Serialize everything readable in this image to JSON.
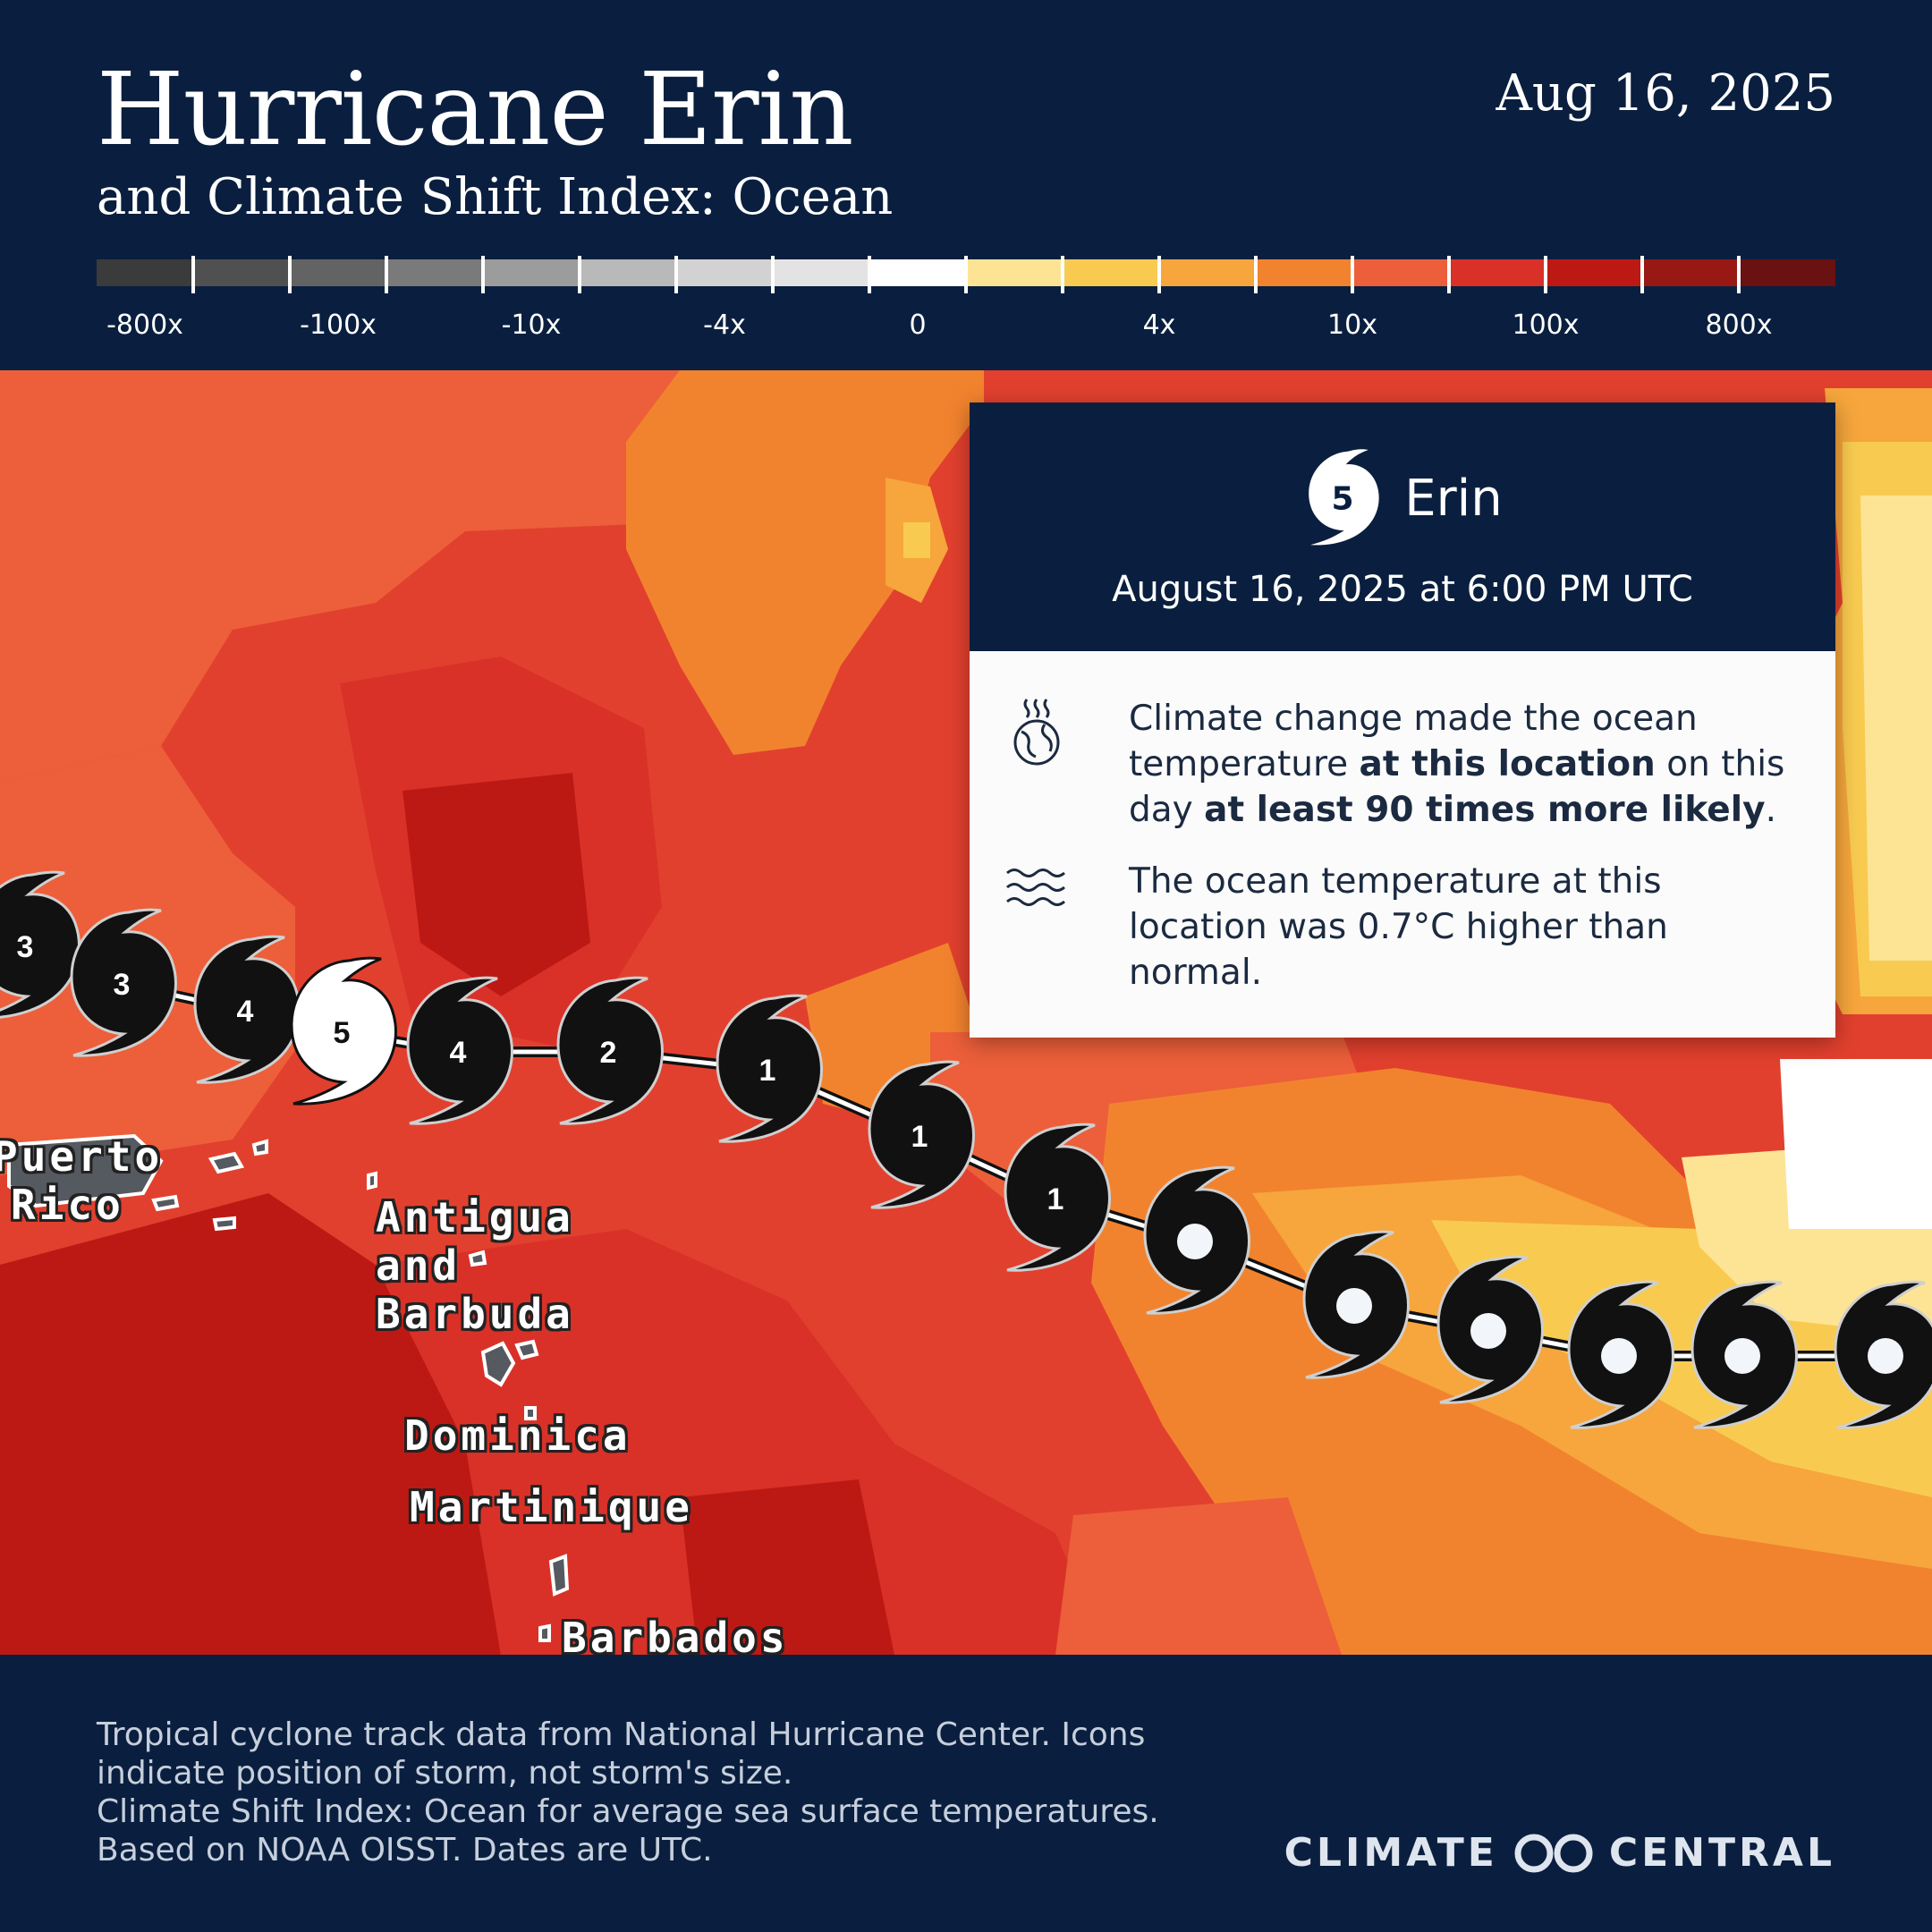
{
  "header": {
    "title": "Hurricane Erin",
    "subtitle": "and Climate Shift Index: Ocean",
    "date": "Aug 16, 2025"
  },
  "legend": {
    "colors": [
      "#3b3b3b",
      "#505050",
      "#636363",
      "#7a7a7a",
      "#9c9c9c",
      "#b9b9b9",
      "#d2d2d2",
      "#e3e3e3",
      "#ffffff",
      "#fde495",
      "#f8cb50",
      "#f6a63c",
      "#f2832e",
      "#ec5f3a",
      "#d93128",
      "#bd1914",
      "#981914",
      "#6a1111"
    ],
    "labels": [
      "-800x",
      "-100x",
      "-10x",
      "-4x",
      "0",
      "4x",
      "10x",
      "100x",
      "800x"
    ]
  },
  "map": {
    "places": {
      "puerto_rico": [
        "Puerto",
        "Rico"
      ],
      "antigua_and_barbuda": [
        "Antigua",
        "and",
        "Barbuda"
      ],
      "dominica": "Dominica",
      "martinique": "Martinique",
      "barbados": "Barbados"
    },
    "track_labels": [
      "3",
      "3",
      "4",
      "5",
      "4",
      "2",
      "1",
      "1",
      "1",
      "",
      "",
      "",
      "",
      "",
      ""
    ]
  },
  "info_card": {
    "category": "5",
    "storm_name": "Erin",
    "datetime": "August 16, 2025 at 6:00 PM UTC",
    "fact1": {
      "text_a": "Climate change made the ocean temperature ",
      "bold_a": "at this location",
      "text_b": " on this day ",
      "bold_b": "at least 90 times more likely",
      "text_c": "."
    },
    "fact2": "The ocean temperature at this location was 0.7°C higher than normal."
  },
  "footer": {
    "source_lines": [
      "Tropical cyclone track data from National Hurricane Center. Icons",
      "indicate position of storm, not storm's size.",
      "Climate Shift Index: Ocean for average sea surface temperatures.",
      "Based on NOAA OISST. Dates are UTC."
    ],
    "brand_left": "CLIMATE",
    "brand_right": "CENTRAL"
  }
}
